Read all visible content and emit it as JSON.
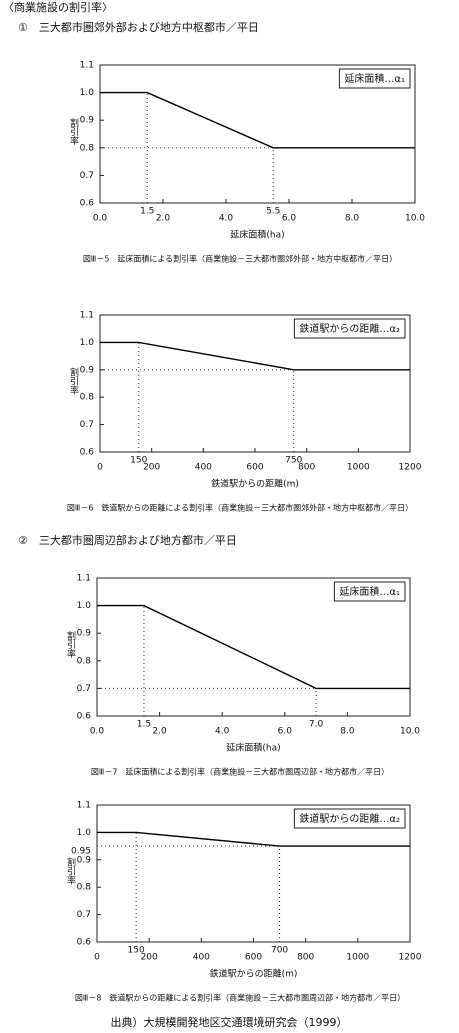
{
  "document": {
    "header": "〈商業施設の割引率〉",
    "section_1": "①　三大都市圏郊外部および地方中枢都市／平日",
    "section_2": "②　三大都市圏周辺部および地方都市／平日",
    "source": "出典）大規模開発地区交通環境研究会（1999）"
  },
  "chart_data": [
    {
      "type": "line",
      "title": "図Ⅲ－5　延床面積による割引率（商業施設－三大都市圏郊外部・地方中枢都市／平日）",
      "x_label": "延床面積(ha)",
      "y_label": "割引率",
      "x": [
        0,
        1.5,
        5.5,
        10
      ],
      "series": [
        {
          "name": "延床面積…α₁",
          "color": "#000000",
          "values": [
            1.0,
            1.0,
            0.8,
            0.8
          ]
        }
      ],
      "xlim": [
        0,
        10
      ],
      "ylim": [
        0.6,
        1.1
      ],
      "xticks": [
        {
          "value": 0,
          "label": "0.0"
        },
        {
          "value": 2,
          "label": "2.0"
        },
        {
          "value": 4,
          "label": "4.0"
        },
        {
          "value": 6,
          "label": "6.0"
        },
        {
          "value": 8,
          "label": "8.0"
        },
        {
          "value": 10,
          "label": "10.0"
        }
      ],
      "yticks": [
        0.6,
        0.7,
        0.8,
        0.9,
        {
          "value": 1,
          "label": "1.0"
        },
        1.1
      ],
      "xmarks": [
        1.5,
        5.5
      ],
      "ymarks": []
    },
    {
      "type": "line",
      "title": "図Ⅲ－6　鉄道駅からの距離による割引率（商業施設－三大都市圏郊外部・地方中枢都市／平日）",
      "x_label": "鉄道駅からの距離(m)",
      "y_label": "割引率",
      "x": [
        0,
        150,
        750,
        1200
      ],
      "series": [
        {
          "name": "鉄道駅からの距離…α₂",
          "color": "#000000",
          "values": [
            1.0,
            1.0,
            0.9,
            0.9
          ]
        }
      ],
      "xlim": [
        0,
        1200
      ],
      "ylim": [
        0.6,
        1.1
      ],
      "xticks": [
        0,
        200,
        400,
        600,
        800,
        1000,
        1200
      ],
      "yticks": [
        0.6,
        0.7,
        0.8,
        0.9,
        {
          "value": 1,
          "label": "1.0"
        },
        1.1
      ],
      "xmarks": [
        150,
        750
      ],
      "ymarks": []
    },
    {
      "type": "line",
      "title": "図Ⅲ－7　延床面積による割引率（商業施設－三大都市圏周辺部・地方都市／平日）",
      "x_label": "延床面積(ha)",
      "y_label": "割引率",
      "x": [
        0,
        1.5,
        7.0,
        10
      ],
      "series": [
        {
          "name": "延床面積…α₁",
          "color": "#000000",
          "values": [
            1.0,
            1.0,
            0.7,
            0.7
          ]
        }
      ],
      "xlim": [
        0,
        10
      ],
      "ylim": [
        0.6,
        1.1
      ],
      "xticks": [
        {
          "value": 0,
          "label": "0.0"
        },
        {
          "value": 2,
          "label": "2.0"
        },
        {
          "value": 4,
          "label": "4.0"
        },
        {
          "value": 6,
          "label": "6.0"
        },
        {
          "value": 8,
          "label": "8.0"
        },
        {
          "value": 10,
          "label": "10.0"
        }
      ],
      "yticks": [
        0.6,
        0.7,
        0.8,
        0.9,
        {
          "value": 1,
          "label": "1.0"
        },
        1.1
      ],
      "xmarks": [
        1.5,
        {
          "value": 7,
          "label": "7.0"
        }
      ],
      "ymarks": []
    },
    {
      "type": "line",
      "title": "図Ⅲ－8　鉄道駅からの距離による割引率（商業施設－三大都市圏周辺部・地方都市／平日）",
      "x_label": "鉄道駅からの距離(m)",
      "y_label": "割引率",
      "x": [
        0,
        150,
        700,
        1200
      ],
      "series": [
        {
          "name": "鉄道駅からの距離…α₂",
          "color": "#000000",
          "values": [
            1.0,
            1.0,
            0.95,
            0.95
          ]
        }
      ],
      "xlim": [
        0,
        1200
      ],
      "ylim": [
        0.6,
        1.1
      ],
      "xticks": [
        0,
        200,
        400,
        600,
        800,
        1000,
        1200
      ],
      "yticks": [
        0.6,
        0.7,
        0.8,
        0.9,
        {
          "value": 1,
          "label": "1.0"
        },
        1.1
      ],
      "xmarks": [
        150,
        700
      ],
      "ymarks": [
        0.95
      ]
    }
  ]
}
